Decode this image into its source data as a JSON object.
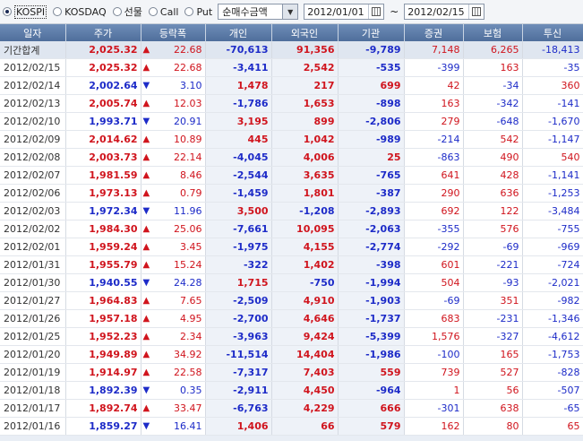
{
  "toolbar": {
    "market_options": [
      {
        "label": "KOSPI",
        "selected": true
      },
      {
        "label": "KOSDAQ",
        "selected": false
      },
      {
        "label": "선물",
        "selected": false
      },
      {
        "label": "Call",
        "selected": false
      },
      {
        "label": "Put",
        "selected": false
      }
    ],
    "amount_type": "순매수금액",
    "start_date": "2012/01/01",
    "tilde": "~",
    "end_date": "2012/02/15"
  },
  "table": {
    "columns": [
      "일자",
      "주가",
      "등락폭",
      "개인",
      "외국인",
      "기관",
      "증권",
      "보험",
      "투신"
    ],
    "summary": {
      "label": "기간합계",
      "price": "2,025.32",
      "dir": "up",
      "change": "22.68",
      "individual": "-70,613",
      "foreign": "91,356",
      "institution": "-9,789",
      "securities": "7,148",
      "insurance": "6,265",
      "investment_trust": "-18,413"
    },
    "rows": [
      {
        "date": "2012/02/15",
        "price": "2,025.32",
        "dir": "up",
        "change": "22.68",
        "individual": "-3,411",
        "foreign": "2,542",
        "institution": "-535",
        "securities": "-399",
        "insurance": "163",
        "investment_trust": "-35"
      },
      {
        "date": "2012/02/14",
        "price": "2,002.64",
        "dir": "down",
        "change": "3.10",
        "individual": "1,478",
        "foreign": "217",
        "institution": "699",
        "securities": "42",
        "insurance": "-34",
        "investment_trust": "360"
      },
      {
        "date": "2012/02/13",
        "price": "2,005.74",
        "dir": "up",
        "change": "12.03",
        "individual": "-1,786",
        "foreign": "1,653",
        "institution": "-898",
        "securities": "163",
        "insurance": "-342",
        "investment_trust": "-141"
      },
      {
        "date": "2012/02/10",
        "price": "1,993.71",
        "dir": "down",
        "change": "20.91",
        "individual": "3,195",
        "foreign": "899",
        "institution": "-2,806",
        "securities": "279",
        "insurance": "-648",
        "investment_trust": "-1,670"
      },
      {
        "date": "2012/02/09",
        "price": "2,014.62",
        "dir": "up",
        "change": "10.89",
        "individual": "445",
        "foreign": "1,042",
        "institution": "-989",
        "securities": "-214",
        "insurance": "542",
        "investment_trust": "-1,147"
      },
      {
        "date": "2012/02/08",
        "price": "2,003.73",
        "dir": "up",
        "change": "22.14",
        "individual": "-4,045",
        "foreign": "4,006",
        "institution": "25",
        "securities": "-863",
        "insurance": "490",
        "investment_trust": "540"
      },
      {
        "date": "2012/02/07",
        "price": "1,981.59",
        "dir": "up",
        "change": "8.46",
        "individual": "-2,544",
        "foreign": "3,635",
        "institution": "-765",
        "securities": "641",
        "insurance": "428",
        "investment_trust": "-1,141"
      },
      {
        "date": "2012/02/06",
        "price": "1,973.13",
        "dir": "up",
        "change": "0.79",
        "individual": "-1,459",
        "foreign": "1,801",
        "institution": "-387",
        "securities": "290",
        "insurance": "636",
        "investment_trust": "-1,253"
      },
      {
        "date": "2012/02/03",
        "price": "1,972.34",
        "dir": "down",
        "change": "11.96",
        "individual": "3,500",
        "foreign": "-1,208",
        "institution": "-2,893",
        "securities": "692",
        "insurance": "122",
        "investment_trust": "-3,484"
      },
      {
        "date": "2012/02/02",
        "price": "1,984.30",
        "dir": "up",
        "change": "25.06",
        "individual": "-7,661",
        "foreign": "10,095",
        "institution": "-2,063",
        "securities": "-355",
        "insurance": "576",
        "investment_trust": "-755"
      },
      {
        "date": "2012/02/01",
        "price": "1,959.24",
        "dir": "up",
        "change": "3.45",
        "individual": "-1,975",
        "foreign": "4,155",
        "institution": "-2,774",
        "securities": "-292",
        "insurance": "-69",
        "investment_trust": "-969"
      },
      {
        "date": "2012/01/31",
        "price": "1,955.79",
        "dir": "up",
        "change": "15.24",
        "individual": "-322",
        "foreign": "1,402",
        "institution": "-398",
        "securities": "601",
        "insurance": "-221",
        "investment_trust": "-724"
      },
      {
        "date": "2012/01/30",
        "price": "1,940.55",
        "dir": "down",
        "change": "24.28",
        "individual": "1,715",
        "foreign": "-750",
        "institution": "-1,994",
        "securities": "504",
        "insurance": "-93",
        "investment_trust": "-2,021"
      },
      {
        "date": "2012/01/27",
        "price": "1,964.83",
        "dir": "up",
        "change": "7.65",
        "individual": "-2,509",
        "foreign": "4,910",
        "institution": "-1,903",
        "securities": "-69",
        "insurance": "351",
        "investment_trust": "-982"
      },
      {
        "date": "2012/01/26",
        "price": "1,957.18",
        "dir": "up",
        "change": "4.95",
        "individual": "-2,700",
        "foreign": "4,646",
        "institution": "-1,737",
        "securities": "683",
        "insurance": "-231",
        "investment_trust": "-1,346"
      },
      {
        "date": "2012/01/25",
        "price": "1,952.23",
        "dir": "up",
        "change": "2.34",
        "individual": "-3,963",
        "foreign": "9,424",
        "institution": "-5,399",
        "securities": "1,576",
        "insurance": "-327",
        "investment_trust": "-4,612"
      },
      {
        "date": "2012/01/20",
        "price": "1,949.89",
        "dir": "up",
        "change": "34.92",
        "individual": "-11,514",
        "foreign": "14,404",
        "institution": "-1,986",
        "securities": "-100",
        "insurance": "165",
        "investment_trust": "-1,753"
      },
      {
        "date": "2012/01/19",
        "price": "1,914.97",
        "dir": "up",
        "change": "22.58",
        "individual": "-7,317",
        "foreign": "7,403",
        "institution": "559",
        "securities": "739",
        "insurance": "527",
        "investment_trust": "-828"
      },
      {
        "date": "2012/01/18",
        "price": "1,892.39",
        "dir": "down",
        "change": "0.35",
        "individual": "-2,911",
        "foreign": "4,450",
        "institution": "-964",
        "securities": "1",
        "insurance": "56",
        "investment_trust": "-507"
      },
      {
        "date": "2012/01/17",
        "price": "1,892.74",
        "dir": "up",
        "change": "33.47",
        "individual": "-6,763",
        "foreign": "4,229",
        "institution": "666",
        "securities": "-301",
        "insurance": "638",
        "investment_trust": "-65"
      },
      {
        "date": "2012/01/16",
        "price": "1,859.27",
        "dir": "down",
        "change": "16.41",
        "individual": "1,406",
        "foreign": "66",
        "institution": "579",
        "securities": "162",
        "insurance": "80",
        "investment_trust": "65"
      }
    ]
  },
  "colors": {
    "up": "#d0141d",
    "down": "#1d2bc8",
    "header": "#5a79a6"
  },
  "icons": {
    "up": "triangle-up-icon",
    "down": "triangle-down-icon",
    "calendar": "calendar-icon",
    "dropdown": "chevron-down-icon"
  }
}
